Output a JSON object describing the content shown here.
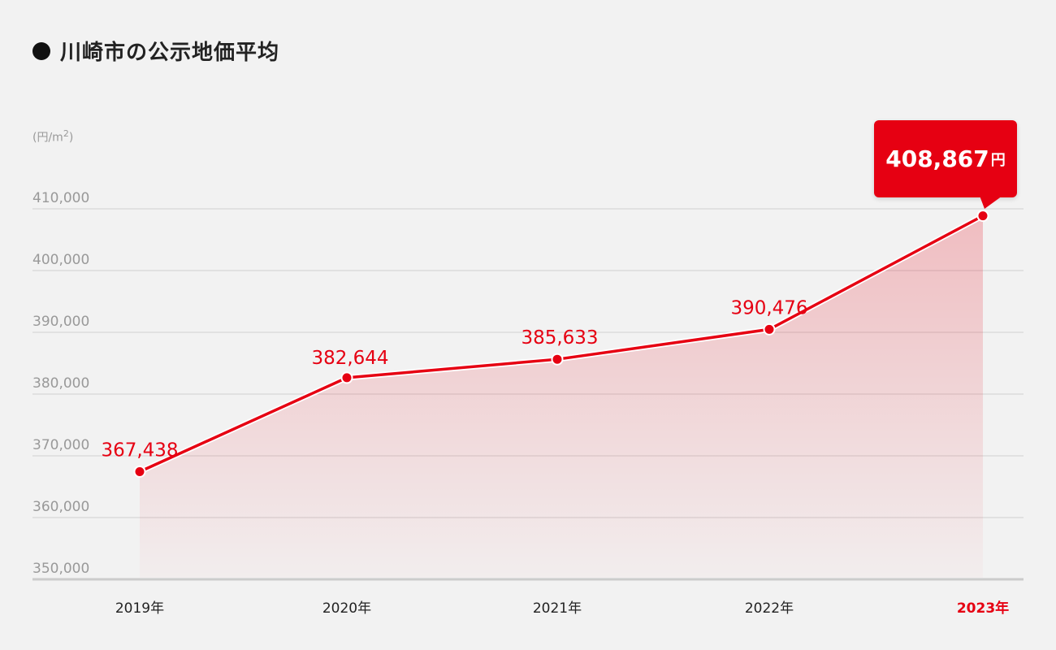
{
  "title": "川崎市の公示地価平均",
  "unit": {
    "prefix": "(円/m",
    "sup": "2",
    "suffix": ")"
  },
  "callout": {
    "value": "408,867",
    "suffix": "円"
  },
  "colors": {
    "accent": "#e60012",
    "line": "#e60012",
    "grid": "#d0d0d0",
    "axis": "#cccccc",
    "tick": "#999999",
    "category": "#222222"
  },
  "chart_data": {
    "type": "area",
    "title": "川崎市の公示地価平均",
    "xlabel": "",
    "ylabel": "(円/m2)",
    "categories": [
      "2019年",
      "2020年",
      "2021年",
      "2022年",
      "2023年"
    ],
    "values": [
      367438,
      382644,
      385633,
      390476,
      408867
    ],
    "data_labels": [
      "367,438",
      "382,644",
      "385,633",
      "390,476",
      "408,867円"
    ],
    "highlight_index": 4,
    "ylim": [
      350000,
      410000
    ],
    "yticks": [
      350000,
      360000,
      370000,
      380000,
      390000,
      400000,
      410000
    ],
    "ytick_labels": [
      "350,000",
      "360,000",
      "370,000",
      "380,000",
      "390,000",
      "400,000",
      "410,000"
    ],
    "grid": true,
    "legend": "none"
  }
}
